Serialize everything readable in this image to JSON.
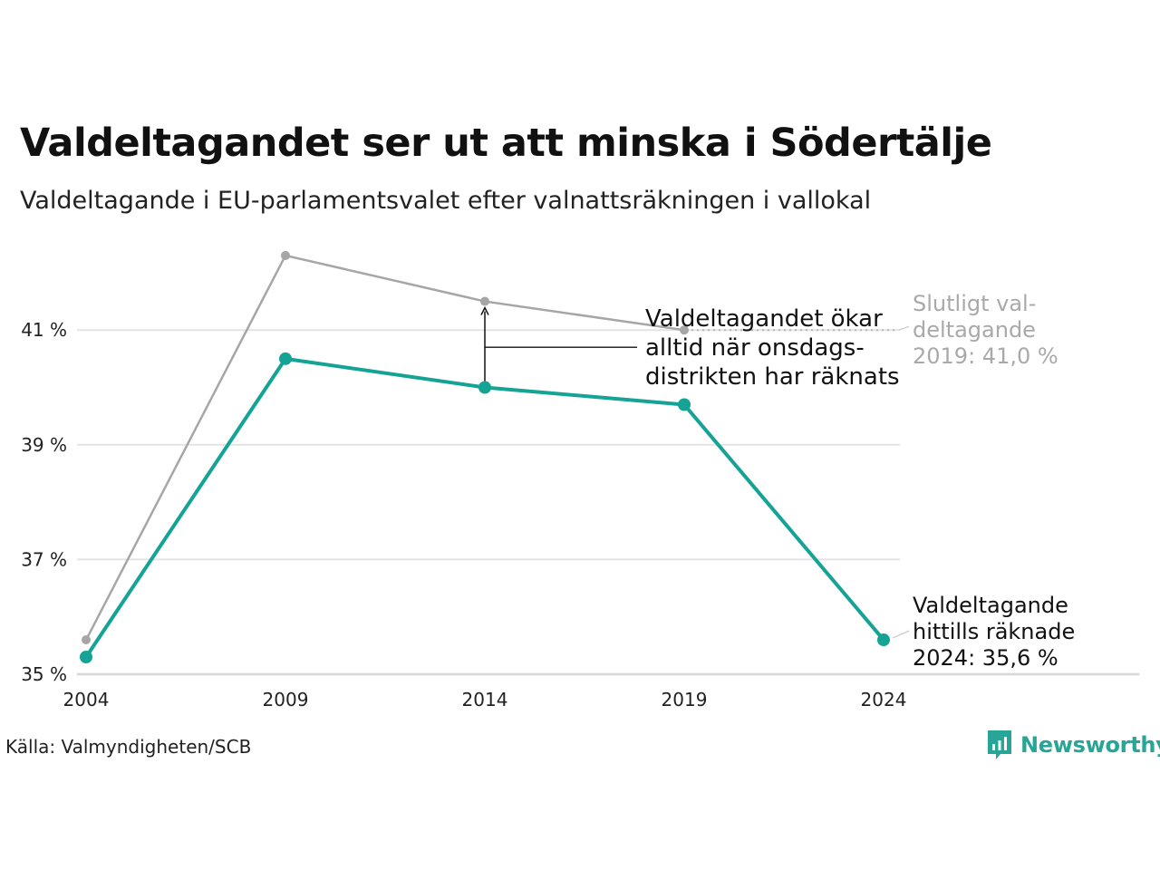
{
  "header": {
    "title": "Valdeltagandet ser ut att minska i Södertälje",
    "subtitle": "Valdeltagande i EU-parlamentsvalet efter valnattsräkningen i vallokal"
  },
  "chart_data": {
    "type": "line",
    "x": [
      2004,
      2009,
      2014,
      2019,
      2024
    ],
    "series": [
      {
        "role": "final",
        "color": "#a6a6a6",
        "values": [
          35.6,
          42.3,
          41.5,
          41.0,
          null
        ]
      },
      {
        "role": "election-night",
        "color": "#14a395",
        "values": [
          35.3,
          40.5,
          40.0,
          39.7,
          35.6
        ]
      }
    ],
    "y_ticks": [
      "41 %",
      "39 %",
      "37 %",
      "35 %"
    ],
    "y_tick_values": [
      41,
      39,
      37,
      35
    ],
    "x_ticks": [
      "2004",
      "2009",
      "2014",
      "2019",
      "2024"
    ],
    "ylim": [
      35,
      43
    ],
    "grid": true,
    "annotations": {
      "increase": [
        "Valdeltagandet ökar",
        "alltid när onsdags-",
        "distrikten har räknats"
      ],
      "final_2019": [
        "Slutligt val-",
        "deltagande",
        "2019: 41,0 %"
      ],
      "current_2024": [
        "Valdeltagande",
        "hittills räknade",
        "2024: 35,6 %"
      ]
    }
  },
  "footer": {
    "source": "Källa: Valmyndigheten/SCB",
    "logo_text": "Newsworthy",
    "logo_icon": "bar-chart-speech-bubble-icon"
  }
}
